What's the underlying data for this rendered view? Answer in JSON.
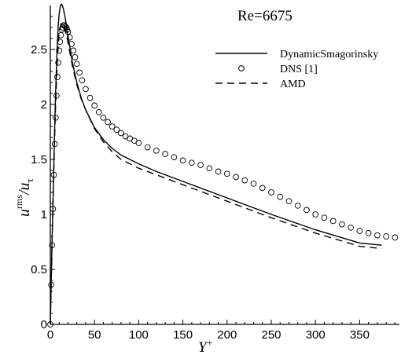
{
  "chart_data": {
    "type": "line",
    "annotation": "Re=6675",
    "xlabel": "Y",
    "xlabel_sup": "+",
    "ylabel_main": "u",
    "ylabel_sup": "rms",
    "ylabel_den": "/u",
    "ylabel_sub": "τ",
    "xlim": [
      0,
      395
    ],
    "ylim": [
      0,
      2.9
    ],
    "xticks": [
      "0",
      "50",
      "100",
      "150",
      "200",
      "250",
      "300",
      "350"
    ],
    "yticks": [
      "0",
      "0.5",
      "1",
      "1.5",
      "2",
      "2.5"
    ],
    "legend_position": "top-right",
    "series": [
      {
        "name": "DynamicSmagorinsky",
        "style": "solid",
        "x": [
          0,
          1,
          2,
          3,
          4,
          5,
          6,
          7,
          8,
          9,
          10,
          11,
          12,
          13,
          14,
          15,
          17,
          20,
          25,
          30,
          35,
          40,
          50,
          60,
          70,
          80,
          100,
          120,
          150,
          200,
          250,
          300,
          350,
          375
        ],
        "y": [
          0,
          0.38,
          0.76,
          1.12,
          1.47,
          1.8,
          2.1,
          2.36,
          2.57,
          2.72,
          2.82,
          2.88,
          2.91,
          2.91,
          2.89,
          2.86,
          2.78,
          2.62,
          2.38,
          2.2,
          2.06,
          1.95,
          1.79,
          1.68,
          1.6,
          1.54,
          1.46,
          1.39,
          1.3,
          1.15,
          1.0,
          0.86,
          0.74,
          0.72
        ]
      },
      {
        "name": "DNS [1]",
        "style": "circle",
        "x": [
          0,
          1,
          2,
          3,
          4,
          5,
          6,
          7,
          8,
          9,
          10,
          11,
          12,
          13,
          14,
          15,
          16,
          17,
          18,
          19,
          20,
          22,
          24,
          26,
          28,
          30,
          33,
          36,
          40,
          45,
          50,
          55,
          60,
          65,
          70,
          75,
          80,
          85,
          90,
          95,
          100,
          110,
          120,
          130,
          140,
          150,
          160,
          170,
          180,
          190,
          200,
          210,
          220,
          230,
          240,
          250,
          260,
          270,
          280,
          290,
          300,
          310,
          320,
          330,
          340,
          350,
          360,
          370,
          380,
          390
        ],
        "y": [
          0,
          0.36,
          0.72,
          1.05,
          1.36,
          1.64,
          1.88,
          2.08,
          2.25,
          2.38,
          2.49,
          2.57,
          2.63,
          2.68,
          2.7,
          2.72,
          2.72,
          2.71,
          2.7,
          2.68,
          2.66,
          2.61,
          2.55,
          2.49,
          2.43,
          2.37,
          2.29,
          2.22,
          2.14,
          2.06,
          1.99,
          1.93,
          1.88,
          1.84,
          1.8,
          1.77,
          1.74,
          1.71,
          1.69,
          1.67,
          1.65,
          1.61,
          1.58,
          1.55,
          1.52,
          1.49,
          1.47,
          1.45,
          1.42,
          1.39,
          1.37,
          1.34,
          1.31,
          1.28,
          1.24,
          1.2,
          1.16,
          1.12,
          1.08,
          1.04,
          1.0,
          0.97,
          0.94,
          0.91,
          0.88,
          0.85,
          0.83,
          0.81,
          0.8,
          0.79
        ]
      },
      {
        "name": "AMD",
        "style": "dashed",
        "x": [
          0,
          1,
          2,
          3,
          4,
          5,
          6,
          7,
          8,
          9,
          10,
          11,
          12,
          13,
          14,
          15,
          17,
          20,
          25,
          30,
          35,
          40,
          50,
          60,
          70,
          80,
          100,
          120,
          150,
          200,
          250,
          300,
          350,
          375
        ],
        "y": [
          0,
          0.37,
          0.74,
          1.09,
          1.42,
          1.72,
          1.99,
          2.22,
          2.41,
          2.55,
          2.65,
          2.7,
          2.73,
          2.74,
          2.74,
          2.73,
          2.69,
          2.56,
          2.35,
          2.18,
          2.05,
          1.95,
          1.78,
          1.66,
          1.57,
          1.5,
          1.42,
          1.36,
          1.27,
          1.12,
          0.97,
          0.83,
          0.71,
          0.69
        ]
      }
    ]
  }
}
